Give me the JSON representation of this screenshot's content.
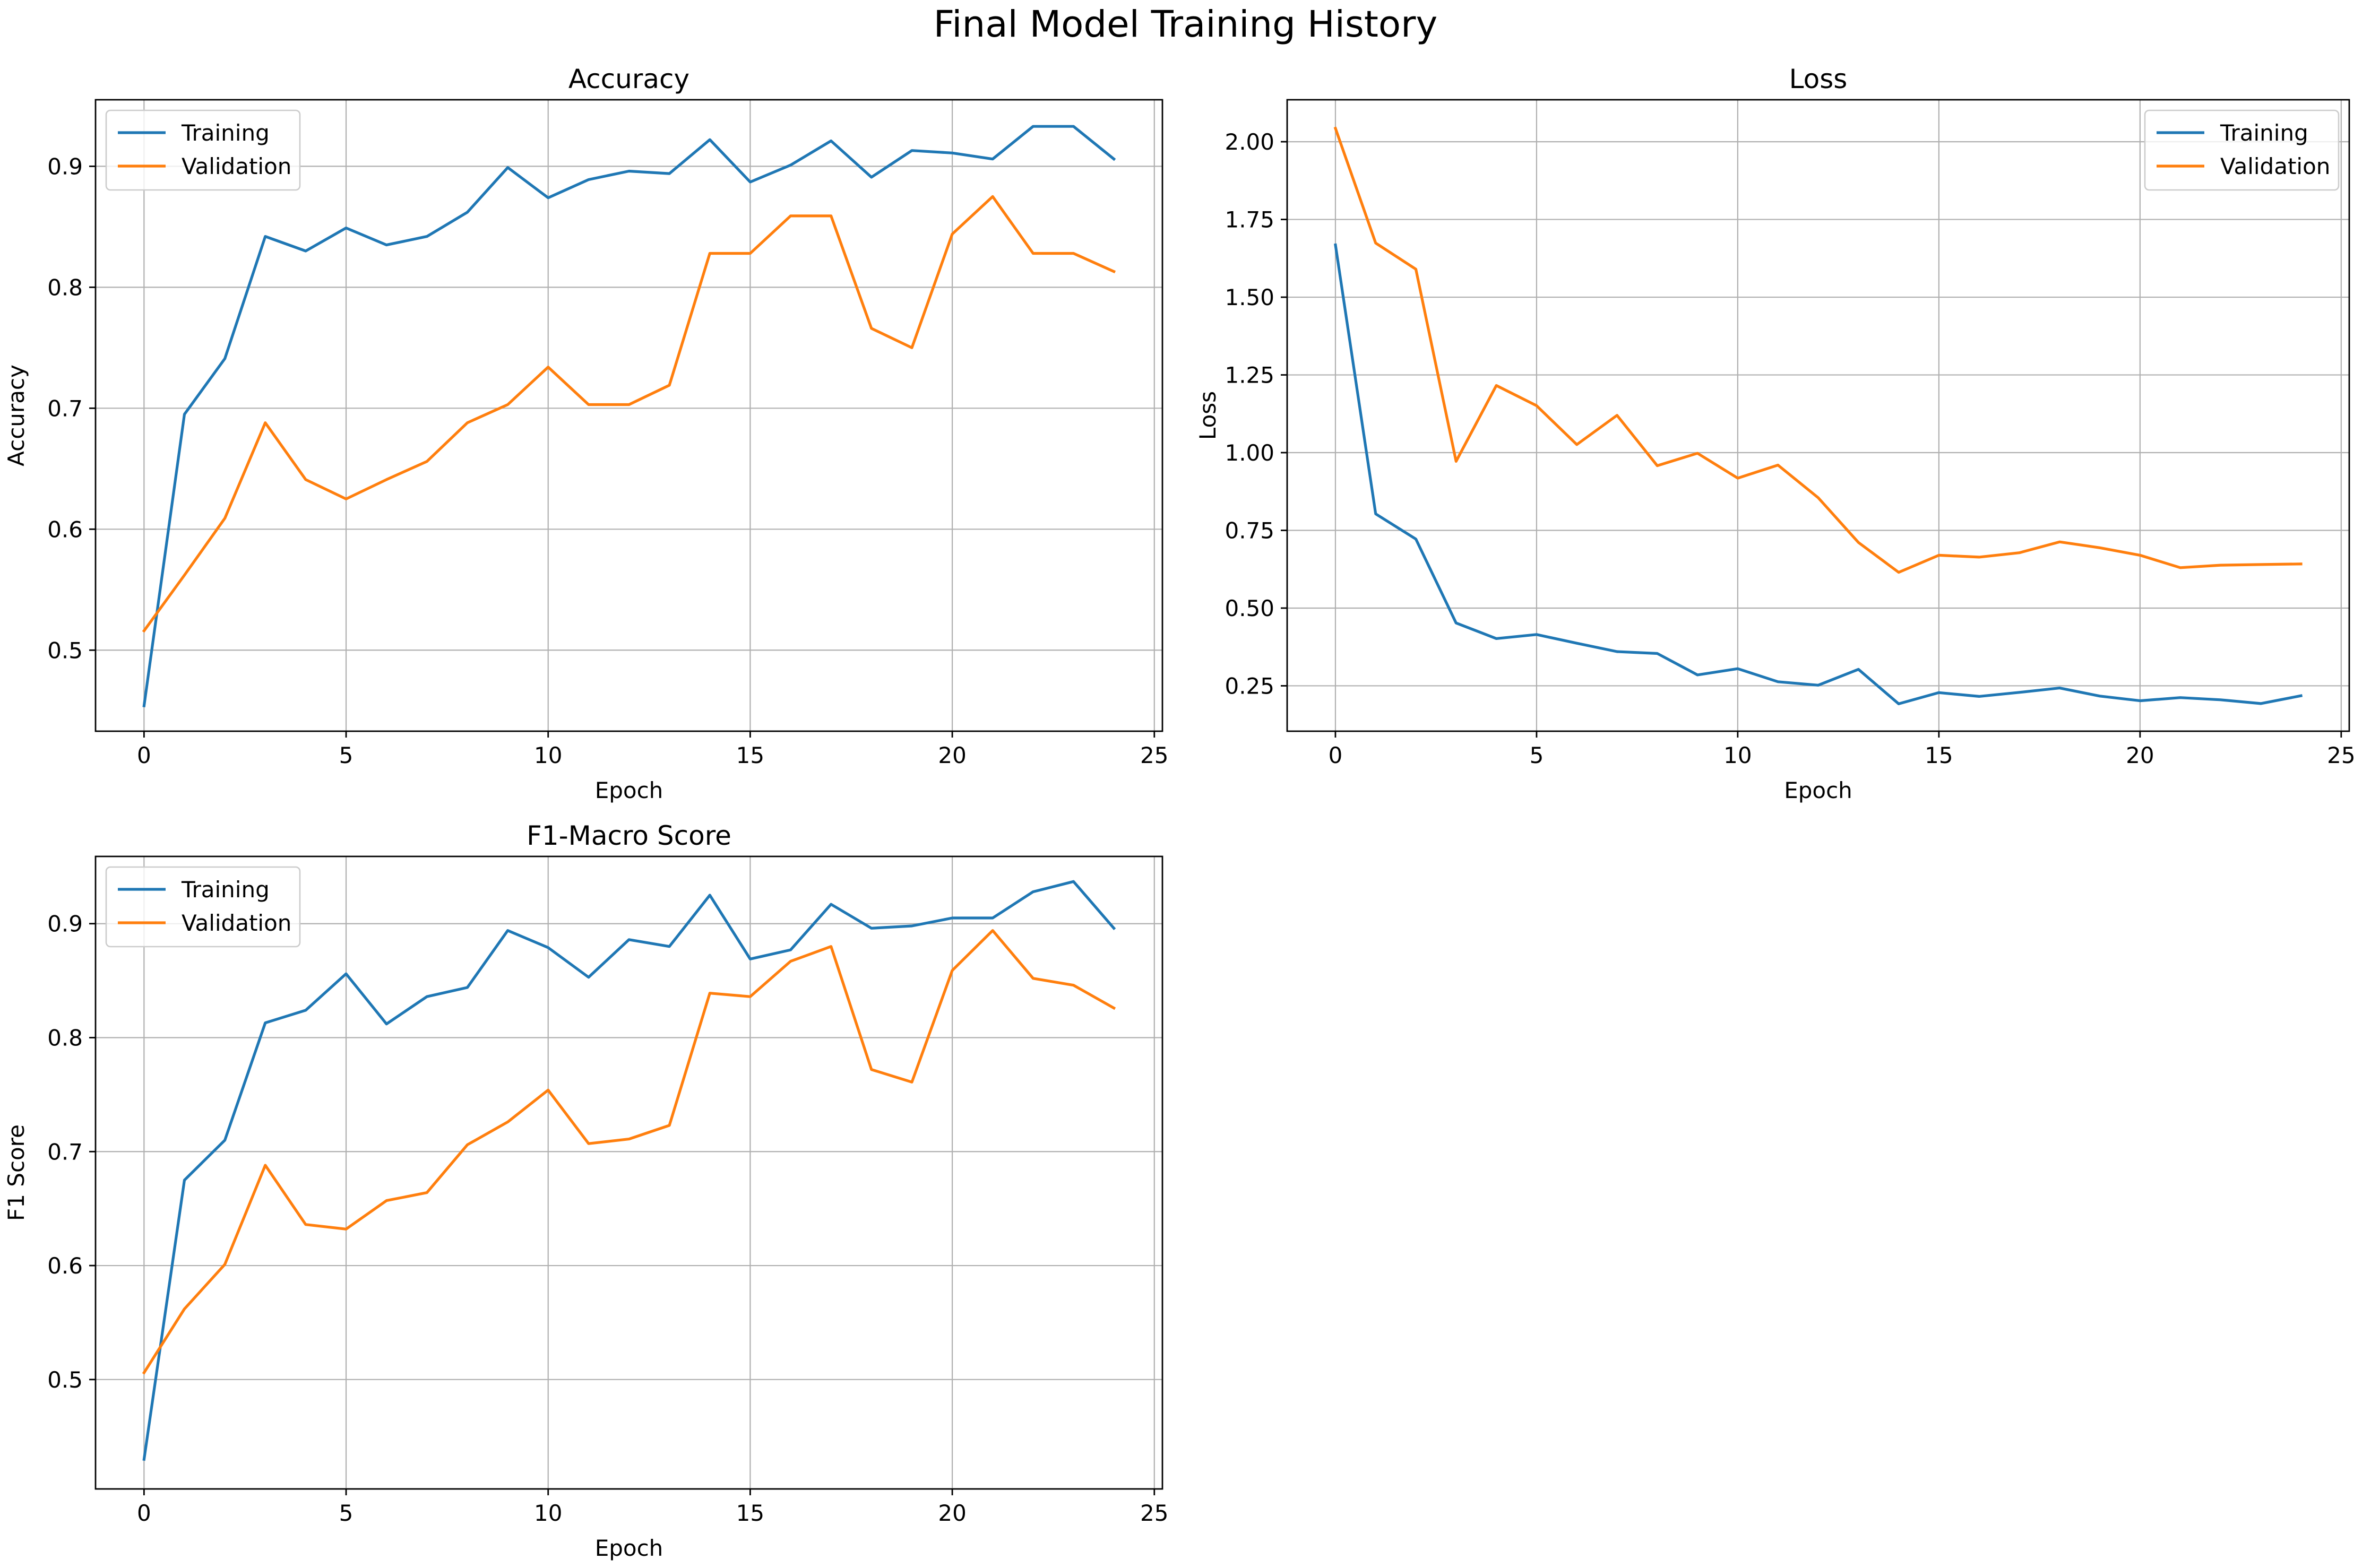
{
  "figure_title": "Final Model Training History",
  "colors": {
    "training": "#1f77b4",
    "validation": "#ff7f0e",
    "grid": "#b0b0b0",
    "frame": "#000000"
  },
  "chart_data": [
    {
      "type": "line",
      "title": "Accuracy",
      "xlabel": "Epoch",
      "ylabel": "Accuracy",
      "grid": true,
      "legend_position": "top-left",
      "xlim": [
        -1.2,
        25.2
      ],
      "ylim": [
        0.433,
        0.955
      ],
      "xticks": [
        0,
        5,
        10,
        15,
        20,
        25
      ],
      "yticks": [
        0.5,
        0.6,
        0.7,
        0.8,
        0.9
      ],
      "ytick_labels": [
        "0.5",
        "0.6",
        "0.7",
        "0.8",
        "0.9"
      ],
      "x": [
        0,
        1,
        2,
        3,
        4,
        5,
        6,
        7,
        8,
        9,
        10,
        11,
        12,
        13,
        14,
        15,
        16,
        17,
        18,
        19,
        20,
        21,
        22,
        23,
        24
      ],
      "series": [
        {
          "name": "Training",
          "color": "#1f77b4",
          "values": [
            0.454,
            0.695,
            0.741,
            0.842,
            0.83,
            0.849,
            0.835,
            0.842,
            0.862,
            0.899,
            0.874,
            0.889,
            0.896,
            0.894,
            0.922,
            0.887,
            0.901,
            0.921,
            0.891,
            0.913,
            0.911,
            0.906,
            0.933,
            0.933,
            0.906
          ]
        },
        {
          "name": "Validation",
          "color": "#ff7f0e",
          "values": [
            0.516,
            0.562,
            0.609,
            0.688,
            0.641,
            0.625,
            0.641,
            0.656,
            0.688,
            0.703,
            0.734,
            0.703,
            0.703,
            0.719,
            0.828,
            0.828,
            0.859,
            0.859,
            0.766,
            0.75,
            0.844,
            0.875,
            0.828,
            0.828,
            0.813
          ]
        }
      ]
    },
    {
      "type": "line",
      "title": "Loss",
      "xlabel": "Epoch",
      "ylabel": "Loss",
      "grid": true,
      "legend_position": "top-right",
      "xlim": [
        -1.2,
        25.2
      ],
      "ylim": [
        0.104,
        2.135
      ],
      "xticks": [
        0,
        5,
        10,
        15,
        20,
        25
      ],
      "yticks": [
        0.25,
        0.5,
        0.75,
        1.0,
        1.25,
        1.5,
        1.75,
        2.0
      ],
      "ytick_labels": [
        "0.25",
        "0.50",
        "0.75",
        "1.00",
        "1.25",
        "1.50",
        "1.75",
        "2.00"
      ],
      "x": [
        0,
        1,
        2,
        3,
        4,
        5,
        6,
        7,
        8,
        9,
        10,
        11,
        12,
        13,
        14,
        15,
        16,
        17,
        18,
        19,
        20,
        21,
        22,
        23,
        24
      ],
      "series": [
        {
          "name": "Training",
          "color": "#1f77b4",
          "values": [
            1.668,
            0.803,
            0.722,
            0.452,
            0.402,
            0.415,
            0.387,
            0.36,
            0.354,
            0.285,
            0.305,
            0.263,
            0.252,
            0.303,
            0.192,
            0.228,
            0.216,
            0.229,
            0.243,
            0.217,
            0.202,
            0.212,
            0.205,
            0.193,
            0.218
          ]
        },
        {
          "name": "Validation",
          "color": "#ff7f0e",
          "values": [
            2.043,
            1.674,
            1.59,
            0.972,
            1.216,
            1.151,
            1.026,
            1.12,
            0.958,
            0.998,
            0.918,
            0.96,
            0.855,
            0.711,
            0.615,
            0.67,
            0.664,
            0.678,
            0.713,
            0.694,
            0.67,
            0.63,
            0.638,
            0.64,
            0.642
          ]
        }
      ]
    },
    {
      "type": "line",
      "title": "F1-Macro Score",
      "xlabel": "Epoch",
      "ylabel": "F1 Score",
      "grid": true,
      "legend_position": "top-left",
      "xlim": [
        -1.2,
        25.2
      ],
      "ylim": [
        0.404,
        0.959
      ],
      "xticks": [
        0,
        5,
        10,
        15,
        20,
        25
      ],
      "yticks": [
        0.5,
        0.6,
        0.7,
        0.8,
        0.9
      ],
      "ytick_labels": [
        "0.5",
        "0.6",
        "0.7",
        "0.8",
        "0.9"
      ],
      "x": [
        0,
        1,
        2,
        3,
        4,
        5,
        6,
        7,
        8,
        9,
        10,
        11,
        12,
        13,
        14,
        15,
        16,
        17,
        18,
        19,
        20,
        21,
        22,
        23,
        24
      ],
      "series": [
        {
          "name": "Training",
          "color": "#1f77b4",
          "values": [
            0.43,
            0.675,
            0.71,
            0.813,
            0.824,
            0.856,
            0.812,
            0.836,
            0.844,
            0.894,
            0.879,
            0.853,
            0.886,
            0.88,
            0.925,
            0.869,
            0.877,
            0.917,
            0.896,
            0.898,
            0.905,
            0.905,
            0.928,
            0.937,
            0.896
          ]
        },
        {
          "name": "Validation",
          "color": "#ff7f0e",
          "values": [
            0.506,
            0.562,
            0.601,
            0.688,
            0.636,
            0.632,
            0.657,
            0.664,
            0.706,
            0.726,
            0.754,
            0.707,
            0.711,
            0.723,
            0.839,
            0.836,
            0.867,
            0.88,
            0.772,
            0.761,
            0.859,
            0.894,
            0.852,
            0.846,
            0.826
          ]
        }
      ]
    }
  ]
}
